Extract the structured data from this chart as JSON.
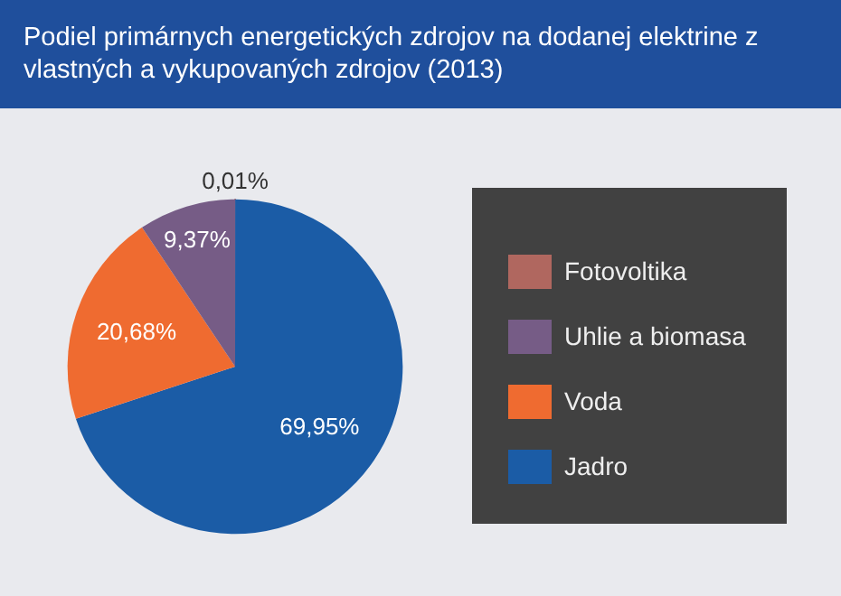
{
  "chart_data": {
    "type": "pie",
    "title": "Podiel primárnych energetických zdrojov na dodanej elektrine z vlastných a vykupovaných zdrojov (2013)",
    "categories": [
      "Fotovoltika",
      "Uhlie a biomasa",
      "Voda",
      "Jadro"
    ],
    "values": [
      0.01,
      9.37,
      20.68,
      69.95
    ],
    "colors": [
      "#b0675f",
      "#765c86",
      "#ef6b30",
      "#1b5ca6"
    ],
    "value_labels": [
      "0,01%",
      "9,37%",
      "20,68%",
      "69,95%"
    ],
    "legend": "right"
  }
}
